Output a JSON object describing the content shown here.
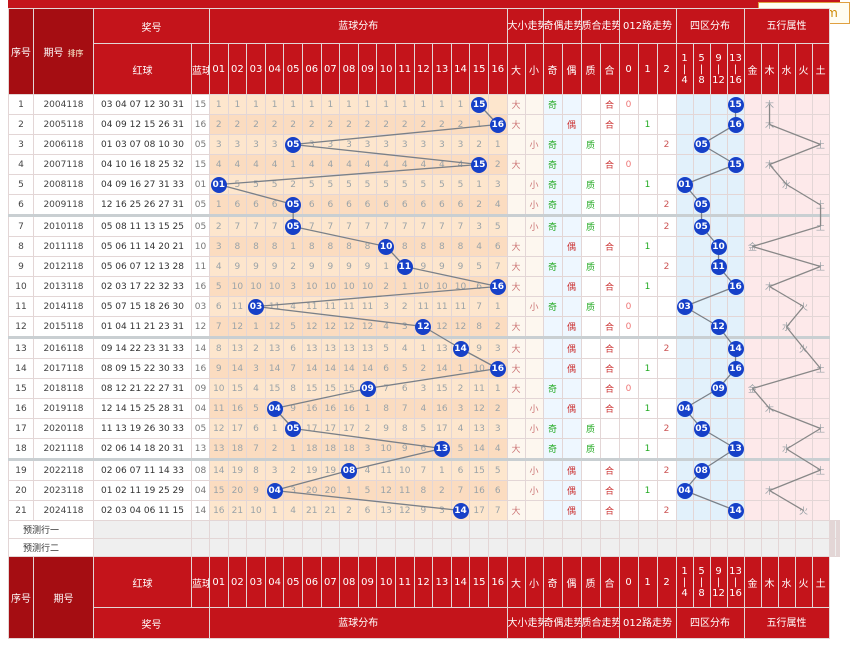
{
  "site_badge": "97654.com",
  "header": {
    "seq": "序号",
    "period": "期号",
    "sort": "排序",
    "prize": "奖号",
    "red": "红球",
    "blue": "蓝球",
    "blue_dist": "蓝球分布",
    "big_small": "大小走势",
    "odd_even": "奇偶走势",
    "prime_comp": "质合走势",
    "road012": "012路走势",
    "zone": "四区分布",
    "wuxing": "五行属性",
    "blue_cols": [
      "01",
      "02",
      "03",
      "04",
      "05",
      "06",
      "07",
      "08",
      "09",
      "10",
      "11",
      "12",
      "13",
      "14",
      "15",
      "16"
    ],
    "bs_cols": [
      "大",
      "小"
    ],
    "oe_cols": [
      "奇",
      "偶"
    ],
    "pc_cols": [
      "质",
      "合"
    ],
    "road_cols": [
      "0",
      "1",
      "2"
    ],
    "zone_cols": [
      "1|4",
      "5|8",
      "9|12",
      "13|16"
    ],
    "wx_cols": [
      "金",
      "木",
      "水",
      "火",
      "土"
    ]
  },
  "rows": [
    {
      "idx": "1",
      "period": "2004118",
      "red": "03 04 07 12 30 31",
      "blue": "15",
      "nums": [
        "1",
        "1",
        "1",
        "1",
        "1",
        "1",
        "1",
        "1",
        "1",
        "1",
        "1",
        "1",
        "1",
        "1",
        "",
        ""
      ],
      "bs": "大",
      "oe": "奇",
      "pc": "合",
      "road": "0",
      "zone": "15",
      "wx": "木",
      "wxcol": 1
    },
    {
      "idx": "2",
      "period": "2005118",
      "red": "04 09 12 15 26 31",
      "blue": "16",
      "nums": [
        "2",
        "2",
        "2",
        "2",
        "2",
        "2",
        "2",
        "2",
        "2",
        "2",
        "2",
        "2",
        "2",
        "2",
        "1",
        ""
      ],
      "bs": "大",
      "oe": "偶",
      "pc": "合",
      "road": "1",
      "zone": "16",
      "wx": "木",
      "wxcol": 1
    },
    {
      "idx": "3",
      "period": "2006118",
      "red": "01 03 07 08 10 30",
      "blue": "05",
      "nums": [
        "3",
        "3",
        "3",
        "3",
        "",
        "3",
        "3",
        "3",
        "3",
        "3",
        "3",
        "3",
        "3",
        "3",
        "2",
        "1"
      ],
      "bs": "小",
      "oe": "奇",
      "pc": "质",
      "road": "2",
      "zone": "05",
      "wx": "土",
      "wxcol": 4
    },
    {
      "idx": "4",
      "period": "2007118",
      "red": "04 10 16 18 25 32",
      "blue": "15",
      "nums": [
        "4",
        "4",
        "4",
        "4",
        "1",
        "4",
        "4",
        "4",
        "4",
        "4",
        "4",
        "4",
        "4",
        "4",
        "",
        "2"
      ],
      "bs": "大",
      "oe": "奇",
      "pc": "合",
      "road": "0",
      "zone": "15",
      "wx": "木",
      "wxcol": 1
    },
    {
      "idx": "5",
      "period": "2008118",
      "red": "04 09 16 27 31 33",
      "blue": "01",
      "nums": [
        "",
        "5",
        "5",
        "5",
        "2",
        "5",
        "5",
        "5",
        "5",
        "5",
        "5",
        "5",
        "5",
        "5",
        "1",
        "3"
      ],
      "bs": "小",
      "oe": "奇",
      "pc": "质",
      "road": "1",
      "zone": "01",
      "wx": "水",
      "wxcol": 2
    },
    {
      "idx": "6",
      "period": "2009118",
      "red": "12 16 25 26 27 31",
      "blue": "05",
      "nums": [
        "1",
        "6",
        "6",
        "6",
        "",
        "6",
        "6",
        "6",
        "6",
        "6",
        "6",
        "6",
        "6",
        "6",
        "2",
        "4"
      ],
      "bs": "小",
      "oe": "奇",
      "pc": "质",
      "road": "2",
      "zone": "05",
      "wx": "土",
      "wxcol": 4
    },
    {
      "idx": "7",
      "period": "2010118",
      "red": "05 08 11 13 15 25",
      "blue": "05",
      "nums": [
        "2",
        "7",
        "7",
        "7",
        "",
        "7",
        "7",
        "7",
        "7",
        "7",
        "7",
        "7",
        "7",
        "7",
        "3",
        "5"
      ],
      "bs": "小",
      "oe": "奇",
      "pc": "质",
      "road": "2",
      "zone": "05",
      "wx": "土",
      "wxcol": 4
    },
    {
      "idx": "8",
      "period": "2011118",
      "red": "05 06 11 14 20 21",
      "blue": "10",
      "nums": [
        "3",
        "8",
        "8",
        "8",
        "1",
        "8",
        "8",
        "8",
        "8",
        "",
        "8",
        "8",
        "8",
        "8",
        "4",
        "6"
      ],
      "bs": "大",
      "oe": "偶",
      "pc": "合",
      "road": "1",
      "zone": "10",
      "wx": "金",
      "wxcol": 0
    },
    {
      "idx": "9",
      "period": "2012118",
      "red": "05 06 07 12 13 28",
      "blue": "11",
      "nums": [
        "4",
        "9",
        "9",
        "9",
        "2",
        "9",
        "9",
        "9",
        "9",
        "1",
        "",
        "9",
        "9",
        "9",
        "5",
        "7"
      ],
      "bs": "大",
      "oe": "奇",
      "pc": "质",
      "road": "2",
      "zone": "11",
      "wx": "土",
      "wxcol": 4
    },
    {
      "idx": "10",
      "period": "2013118",
      "red": "02 03 17 22 32 33",
      "blue": "16",
      "nums": [
        "5",
        "10",
        "10",
        "10",
        "3",
        "10",
        "10",
        "10",
        "10",
        "2",
        "1",
        "10",
        "10",
        "10",
        "6",
        ""
      ],
      "bs": "大",
      "oe": "偶",
      "pc": "合",
      "road": "1",
      "zone": "16",
      "wx": "木",
      "wxcol": 1
    },
    {
      "idx": "11",
      "period": "2014118",
      "red": "05 07 15 18 26 30",
      "blue": "03",
      "nums": [
        "6",
        "11",
        "",
        "11",
        "4",
        "11",
        "11",
        "11",
        "11",
        "3",
        "2",
        "11",
        "11",
        "11",
        "7",
        "1"
      ],
      "bs": "小",
      "oe": "奇",
      "pc": "质",
      "road": "0",
      "zone": "03",
      "wx": "火",
      "wxcol": 3
    },
    {
      "idx": "12",
      "period": "2015118",
      "red": "01 04 11 21 23 31",
      "blue": "12",
      "nums": [
        "7",
        "12",
        "1",
        "12",
        "5",
        "12",
        "12",
        "12",
        "12",
        "4",
        "3",
        "",
        "12",
        "12",
        "8",
        "2"
      ],
      "bs": "大",
      "oe": "偶",
      "pc": "合",
      "road": "0",
      "zone": "12",
      "wx": "水",
      "wxcol": 2
    },
    {
      "idx": "13",
      "period": "2016118",
      "red": "09 14 22 23 31 33",
      "blue": "14",
      "nums": [
        "8",
        "13",
        "2",
        "13",
        "6",
        "13",
        "13",
        "13",
        "13",
        "5",
        "4",
        "1",
        "13",
        "",
        "9",
        "3"
      ],
      "bs": "大",
      "oe": "偶",
      "pc": "合",
      "road": "2",
      "zone": "14",
      "wx": "火",
      "wxcol": 3
    },
    {
      "idx": "14",
      "period": "2017118",
      "red": "08 09 15 22 30 33",
      "blue": "16",
      "nums": [
        "9",
        "14",
        "3",
        "14",
        "7",
        "14",
        "14",
        "14",
        "14",
        "6",
        "5",
        "2",
        "14",
        "1",
        "10",
        ""
      ],
      "bs": "大",
      "oe": "偶",
      "pc": "合",
      "road": "1",
      "zone": "16",
      "wx": "土",
      "wxcol": 4
    },
    {
      "idx": "15",
      "period": "2018118",
      "red": "08 12 21 22 27 31",
      "blue": "09",
      "nums": [
        "10",
        "15",
        "4",
        "15",
        "8",
        "15",
        "15",
        "15",
        "",
        "7",
        "6",
        "3",
        "15",
        "2",
        "11",
        "1"
      ],
      "bs": "大",
      "oe": "奇",
      "pc": "合",
      "road": "0",
      "zone": "09",
      "wx": "金",
      "wxcol": 0
    },
    {
      "idx": "16",
      "period": "2019118",
      "red": "12 14 15 25 28 31",
      "blue": "04",
      "nums": [
        "11",
        "16",
        "5",
        "",
        "9",
        "16",
        "16",
        "16",
        "1",
        "8",
        "7",
        "4",
        "16",
        "3",
        "12",
        "2"
      ],
      "bs": "小",
      "oe": "偶",
      "pc": "合",
      "road": "1",
      "zone": "04",
      "wx": "木",
      "wxcol": 1
    },
    {
      "idx": "17",
      "period": "2020118",
      "red": "11 13 19 26 30 33",
      "blue": "05",
      "nums": [
        "12",
        "17",
        "6",
        "1",
        "",
        "17",
        "17",
        "17",
        "2",
        "9",
        "8",
        "5",
        "17",
        "4",
        "13",
        "3"
      ],
      "bs": "小",
      "oe": "奇",
      "pc": "质",
      "road": "2",
      "zone": "05",
      "wx": "土",
      "wxcol": 4
    },
    {
      "idx": "18",
      "period": "2021118",
      "red": "02 06 14 18 20 31",
      "blue": "13",
      "nums": [
        "13",
        "18",
        "7",
        "2",
        "1",
        "18",
        "18",
        "18",
        "3",
        "10",
        "9",
        "6",
        "",
        "5",
        "14",
        "4"
      ],
      "bs": "大",
      "oe": "奇",
      "pc": "质",
      "road": "1",
      "zone": "13",
      "wx": "水",
      "wxcol": 2
    },
    {
      "idx": "19",
      "period": "2022118",
      "red": "02 06 07 11 14 33",
      "blue": "08",
      "nums": [
        "14",
        "19",
        "8",
        "3",
        "2",
        "19",
        "19",
        "",
        "4",
        "11",
        "10",
        "7",
        "1",
        "6",
        "15",
        "5"
      ],
      "bs": "小",
      "oe": "偶",
      "pc": "合",
      "road": "2",
      "zone": "08",
      "wx": "土",
      "wxcol": 4
    },
    {
      "idx": "20",
      "period": "2023118",
      "red": "01 02 11 19 25 29",
      "blue": "04",
      "nums": [
        "15",
        "20",
        "9",
        "",
        "3",
        "20",
        "20",
        "1",
        "5",
        "12",
        "11",
        "8",
        "2",
        "7",
        "16",
        "6"
      ],
      "bs": "小",
      "oe": "偶",
      "pc": "合",
      "road": "1",
      "zone": "04",
      "wx": "木",
      "wxcol": 1
    },
    {
      "idx": "21",
      "period": "2024118",
      "red": "02 03 04 06 11 15",
      "blue": "14",
      "nums": [
        "16",
        "21",
        "10",
        "1",
        "4",
        "21",
        "21",
        "2",
        "6",
        "13",
        "12",
        "9",
        "3",
        "",
        "17",
        "7"
      ],
      "bs": "大",
      "oe": "偶",
      "pc": "合",
      "road": "2",
      "zone": "14",
      "wx": "火",
      "wxcol": 3
    }
  ],
  "predict": [
    "预测行一",
    "预测行二"
  ],
  "colors": {
    "header_red": "#c4141b",
    "ball_blue": "#1640c8",
    "blue_zone_bg": "#fde6cd"
  }
}
